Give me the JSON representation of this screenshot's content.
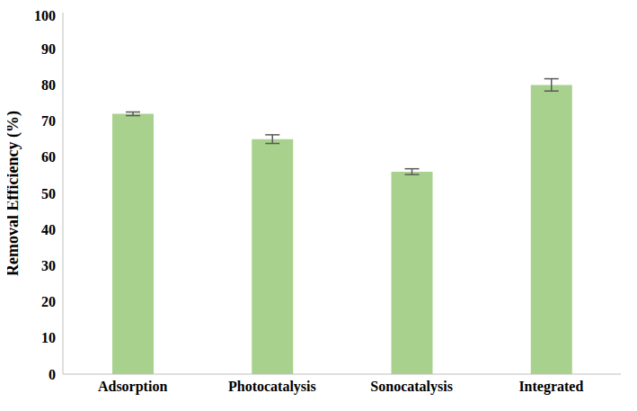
{
  "chart_data": {
    "type": "bar",
    "y_label": "Removal Efficiency (%)",
    "categories": [
      "Adsorption",
      "Photocatalysis",
      "Sonocatalysis",
      "Integrated"
    ],
    "values": [
      72,
      65,
      56,
      80
    ],
    "errors": [
      0.5,
      1.2,
      0.8,
      1.7
    ],
    "color": "#a9d18e",
    "ylim": [
      0,
      100
    ],
    "yticks": [
      0,
      10,
      20,
      30,
      40,
      50,
      60,
      70,
      80,
      90,
      100
    ],
    "grid": false
  }
}
